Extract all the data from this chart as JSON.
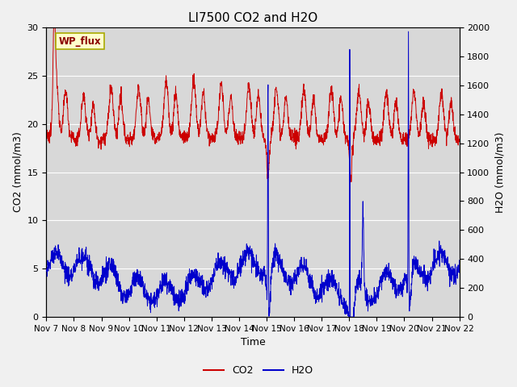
{
  "title": "LI7500 CO2 and H2O",
  "xlabel": "Time",
  "ylabel_left": "CO2 (mmol/m3)",
  "ylabel_right": "H2O (mmol/m3)",
  "ylim_left": [
    0,
    30
  ],
  "ylim_right": [
    0,
    2000
  ],
  "yticks_left": [
    0,
    5,
    10,
    15,
    20,
    25,
    30
  ],
  "yticks_right": [
    0,
    200,
    400,
    600,
    800,
    1000,
    1200,
    1400,
    1600,
    1800,
    2000
  ],
  "xtick_labels": [
    "Nov 7",
    "Nov 8",
    "Nov 9",
    "Nov 10",
    "Nov 11",
    "Nov 12",
    "Nov 13",
    "Nov 14",
    "Nov 15",
    "Nov 16",
    "Nov 17",
    "Nov 18",
    "Nov 19",
    "Nov 20",
    "Nov 21",
    "Nov 22"
  ],
  "co2_color": "#cc0000",
  "h2o_color": "#0000cc",
  "fig_bg_color": "#f0f0f0",
  "plot_bg_color": "#d8d8d8",
  "label_box_text": "WP_flux",
  "grid_color": "#ffffff",
  "title_fontsize": 11,
  "axis_fontsize": 9,
  "tick_fontsize": 8,
  "xtick_fontsize": 7.5
}
